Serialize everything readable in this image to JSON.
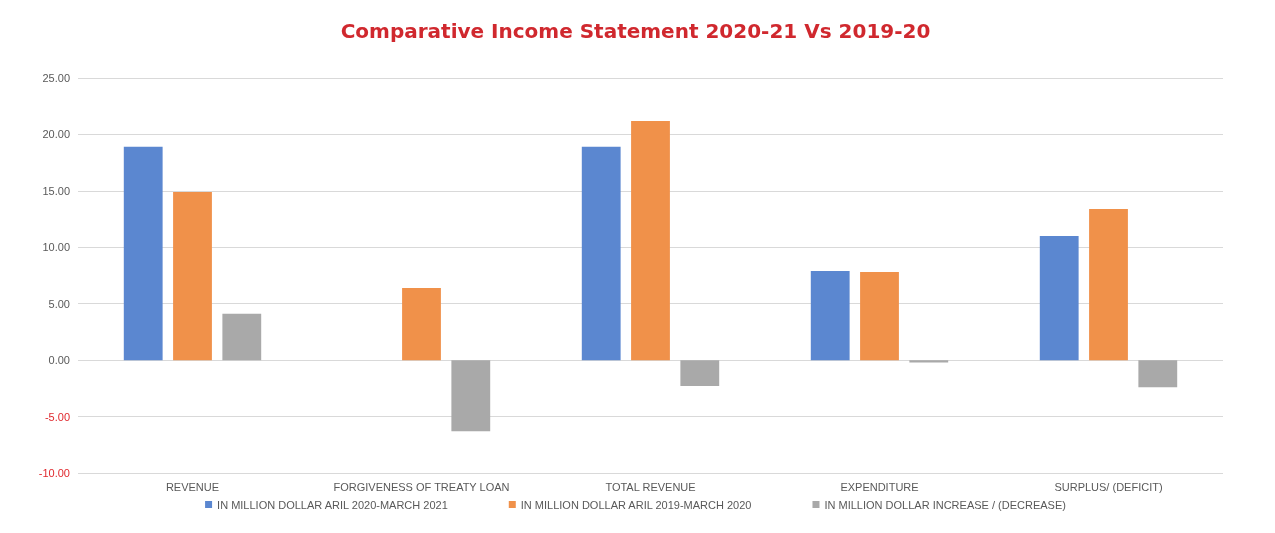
{
  "chart_data": {
    "type": "bar",
    "title": "Comparative Income Statement 2020-21 Vs 2019-20",
    "categories": [
      "REVENUE",
      "FORGIVENESS OF TREATY LOAN",
      "TOTAL REVENUE",
      "EXPENDITURE",
      "SURPLUS/ (DEFICIT)"
    ],
    "series": [
      {
        "name": "IN MILLION DOLLAR ARIL 2020-MARCH 2021",
        "color": "#5b87d0",
        "values": [
          18.9,
          0,
          18.9,
          7.9,
          11.0
        ]
      },
      {
        "name": "IN MILLION DOLLAR ARIL 2019-MARCH 2020",
        "color": "#f0914a",
        "values": [
          14.9,
          6.4,
          21.2,
          7.8,
          13.4
        ]
      },
      {
        "name": "IN MILLION DOLLAR INCREASE / (DECREASE)",
        "color": "#a9a9a9",
        "values": [
          4.1,
          -6.3,
          -2.3,
          -0.2,
          -2.4
        ]
      }
    ],
    "ylim": [
      -10,
      25
    ],
    "yticks": [
      {
        "value": -10,
        "label": "-10.00"
      },
      {
        "value": -5,
        "label": "-5.00"
      },
      {
        "value": 0,
        "label": "0.00"
      },
      {
        "value": 5,
        "label": "5.00"
      },
      {
        "value": 10,
        "label": "10.00"
      },
      {
        "value": 15,
        "label": "15.00"
      },
      {
        "value": 20,
        "label": "20.00"
      },
      {
        "value": 25,
        "label": "25.00"
      }
    ],
    "grid": "y",
    "legend": "bottom"
  }
}
